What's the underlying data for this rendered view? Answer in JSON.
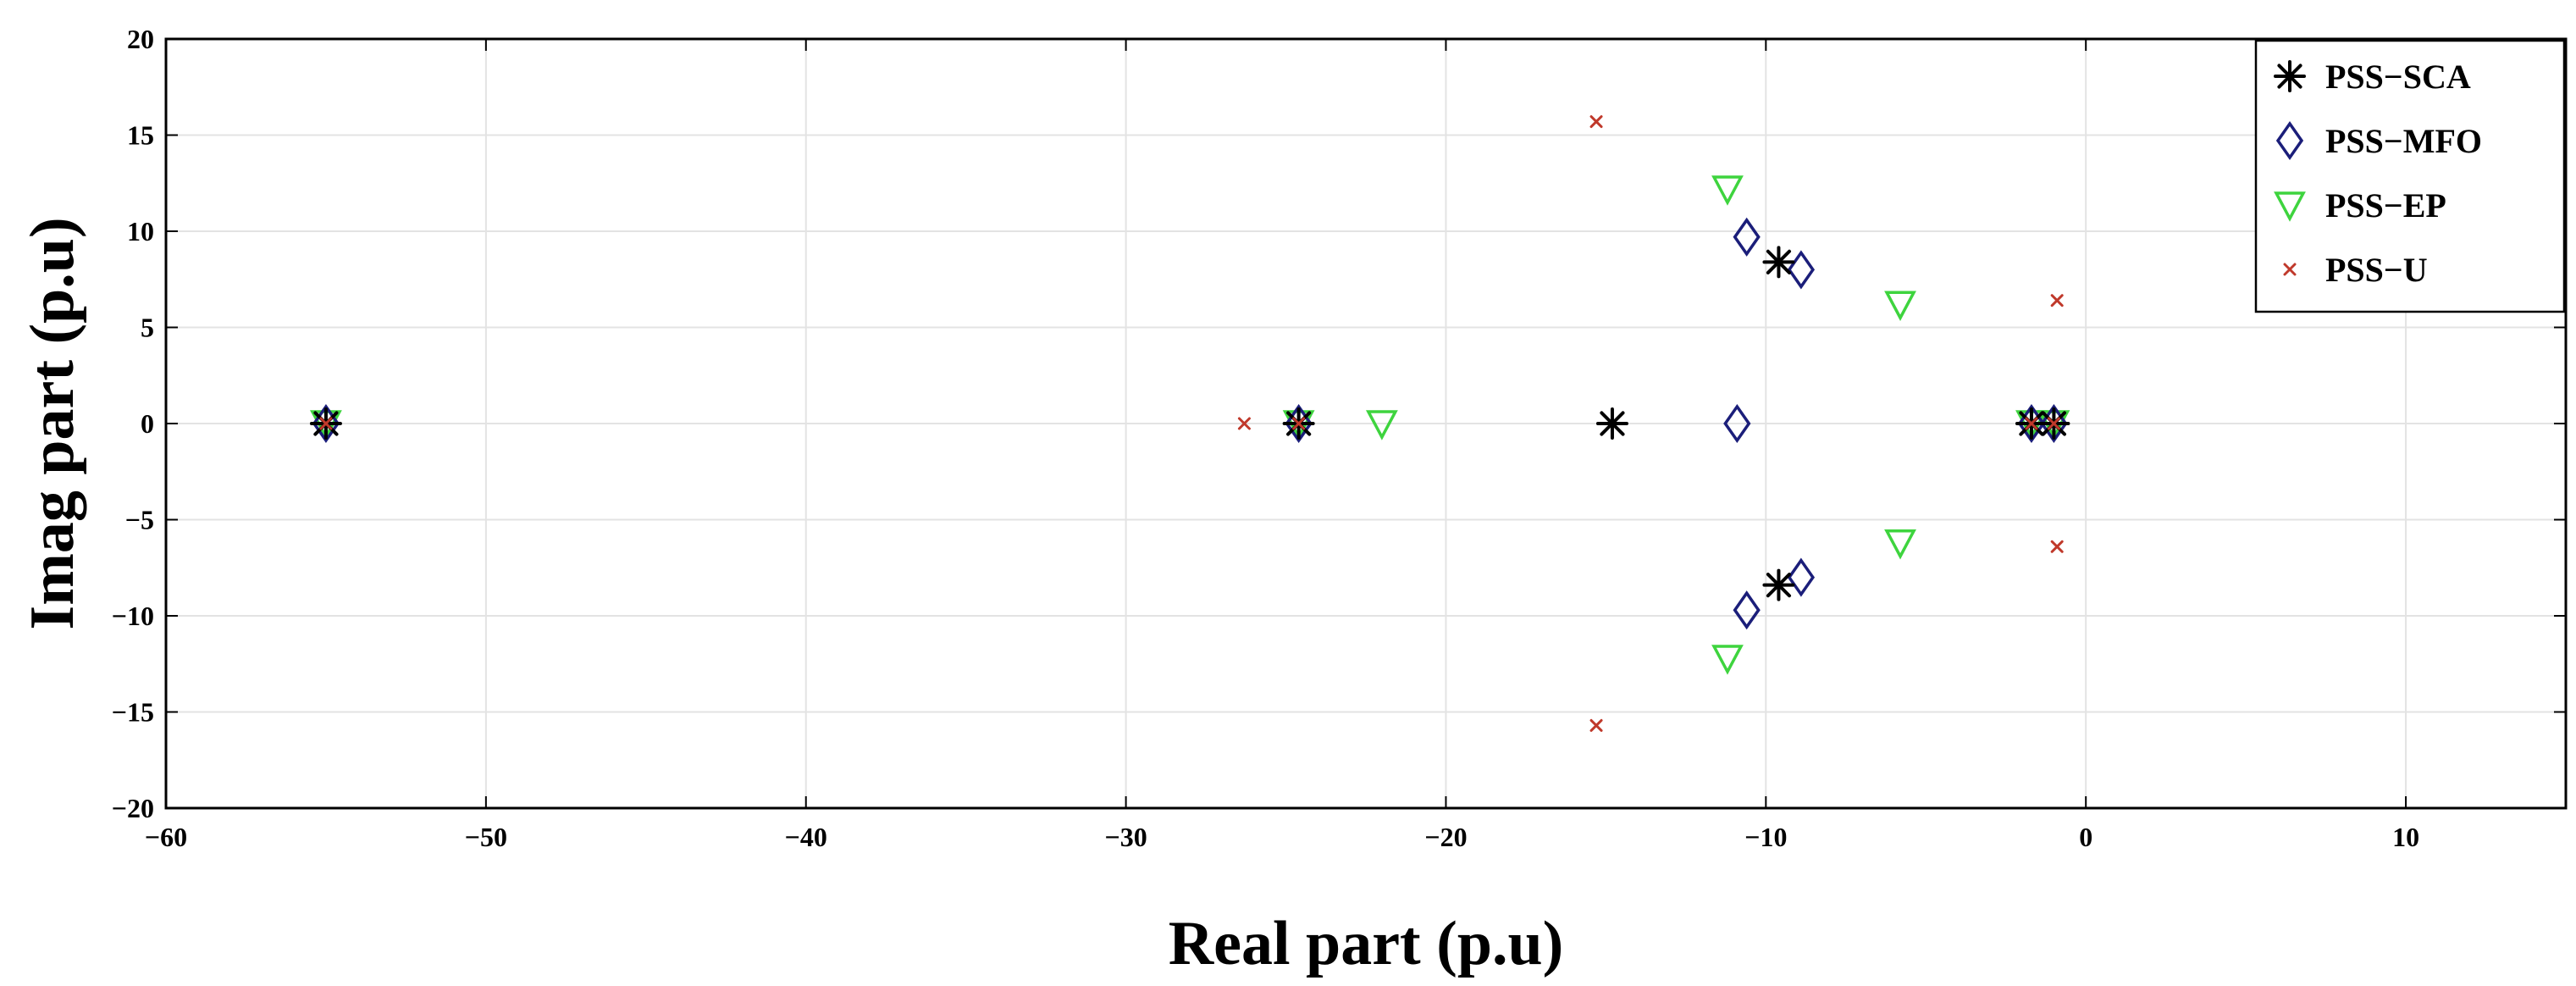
{
  "chart_data": {
    "type": "scatter",
    "title": "",
    "xlabel": "Real part (p.u)",
    "ylabel": "Imag part (p.u)",
    "xlim": [
      -60,
      15
    ],
    "ylim": [
      -20,
      20
    ],
    "xticks": [
      -60,
      -50,
      -40,
      -30,
      -20,
      -10,
      0,
      10
    ],
    "yticks": [
      -20,
      -15,
      -10,
      -5,
      0,
      5,
      10,
      15,
      20
    ],
    "xtick_labels": [
      "−60",
      "−50",
      "−40",
      "−30",
      "−20",
      "−10",
      "0",
      "10"
    ],
    "ytick_labels": [
      "−20",
      "−15",
      "−10",
      "−5",
      "0",
      "5",
      "10",
      "15",
      "20"
    ],
    "grid": true,
    "legend_position": "top-right",
    "series": [
      {
        "name": "PSS−SCA",
        "marker": "asterisk",
        "color": "#000000",
        "points": [
          [
            -55,
            0
          ],
          [
            -24.6,
            0
          ],
          [
            -14.8,
            0
          ],
          [
            -9.6,
            8.4
          ],
          [
            -9.6,
            -8.4
          ],
          [
            -1.7,
            0
          ],
          [
            -1.0,
            0
          ]
        ]
      },
      {
        "name": "PSS−MFO",
        "marker": "diamond",
        "color": "#1b1e7a",
        "points": [
          [
            -55,
            0
          ],
          [
            -24.6,
            0
          ],
          [
            -10.9,
            0
          ],
          [
            -10.6,
            9.7
          ],
          [
            -10.6,
            -9.7
          ],
          [
            -8.9,
            8.0
          ],
          [
            -8.9,
            -8.0
          ],
          [
            -1.7,
            0
          ],
          [
            -1.0,
            0
          ]
        ]
      },
      {
        "name": "PSS−EP",
        "marker": "triangle-down",
        "color": "#3ed43e",
        "points": [
          [
            -55,
            0
          ],
          [
            -24.6,
            0
          ],
          [
            -22.0,
            0
          ],
          [
            -11.2,
            12.2
          ],
          [
            -11.2,
            -12.2
          ],
          [
            -5.8,
            6.2
          ],
          [
            -5.8,
            -6.2
          ],
          [
            -1.7,
            0
          ],
          [
            -1.0,
            0
          ]
        ]
      },
      {
        "name": "PSS−U",
        "marker": "x",
        "color": "#c0392b",
        "points": [
          [
            -55,
            0
          ],
          [
            -26.3,
            0
          ],
          [
            -24.6,
            0
          ],
          [
            -15.3,
            15.7
          ],
          [
            -15.3,
            -15.7
          ],
          [
            -0.9,
            6.4
          ],
          [
            -0.9,
            -6.4
          ],
          [
            -1.7,
            0
          ],
          [
            -1.0,
            0
          ]
        ]
      }
    ]
  }
}
